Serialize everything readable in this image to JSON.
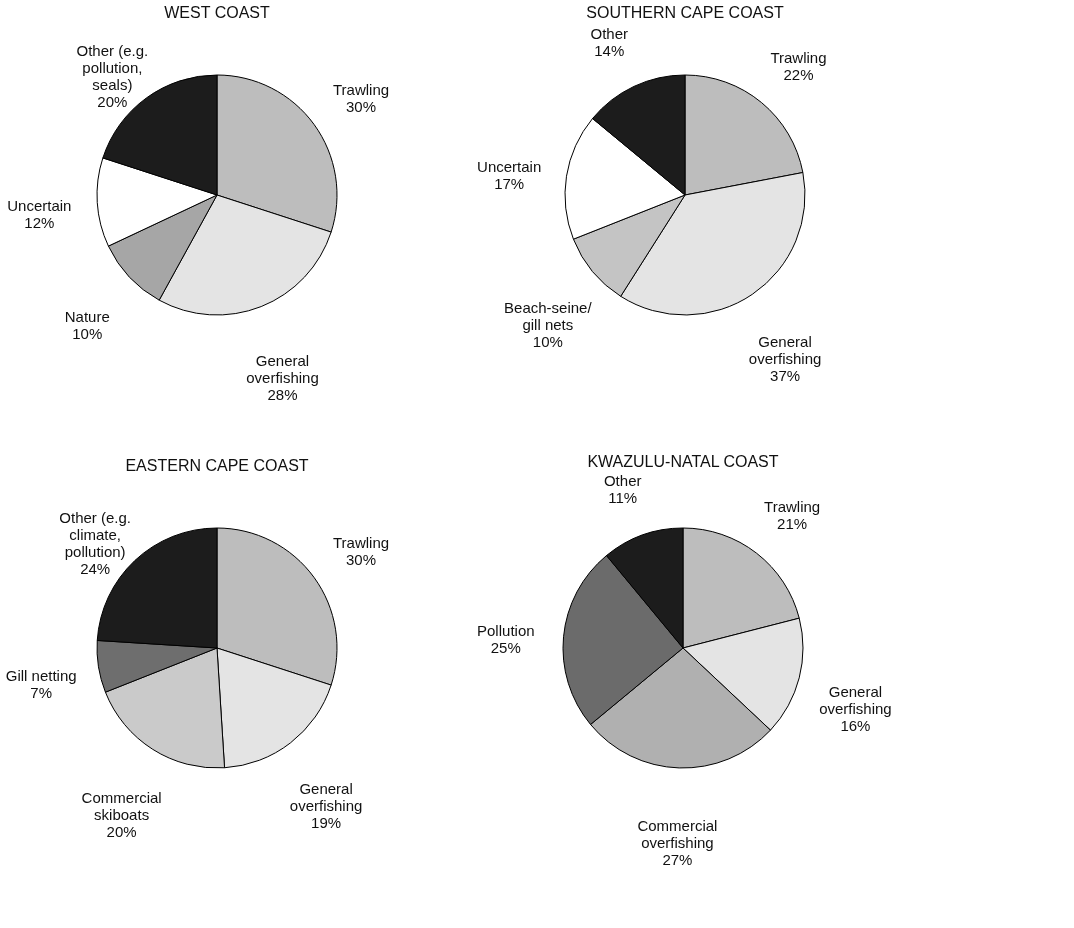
{
  "chart_data": [
    {
      "type": "pie",
      "title": "WEST COAST",
      "categories": [
        "Trawling",
        "General overfishing",
        "Nature",
        "Uncertain",
        "Other (e.g. pollution, seals)"
      ],
      "values": [
        30,
        28,
        10,
        12,
        20
      ],
      "value_labels": [
        "30%",
        "28%",
        "10%",
        "12%",
        "20%"
      ],
      "colors": [
        "#bdbdbd",
        "#e4e4e4",
        "#a6a6a6",
        "#ffffff",
        "#1c1c1c"
      ]
    },
    {
      "type": "pie",
      "title": "SOUTHERN CAPE COAST",
      "categories": [
        "Trawling",
        "General overfishing",
        "Beach-seine/ gill nets",
        "Uncertain",
        "Other"
      ],
      "values": [
        22,
        37,
        10,
        17,
        14
      ],
      "value_labels": [
        "22%",
        "37%",
        "10%",
        "17%",
        "14%"
      ],
      "colors": [
        "#bdbdbd",
        "#e4e4e4",
        "#c4c4c4",
        "#ffffff",
        "#1c1c1c"
      ]
    },
    {
      "type": "pie",
      "title": "EASTERN CAPE COAST",
      "categories": [
        "Trawling",
        "General overfishing",
        "Commercial skiboats",
        "Gill netting",
        "Other (e.g. climate, pollution)"
      ],
      "values": [
        30,
        19,
        20,
        7,
        24
      ],
      "value_labels": [
        "30%",
        "19%",
        "20%",
        "7%",
        "24%"
      ],
      "colors": [
        "#bdbdbd",
        "#e4e4e4",
        "#cacaca",
        "#6e6e6e",
        "#1c1c1c"
      ]
    },
    {
      "type": "pie",
      "title": "KWAZULU-NATAL COAST",
      "categories": [
        "Trawling",
        "General overfishing",
        "Commercial overfishing",
        "Pollution",
        "Other"
      ],
      "values": [
        21,
        16,
        27,
        25,
        11
      ],
      "value_labels": [
        "21%",
        "16%",
        "27%",
        "25%",
        "11%"
      ],
      "colors": [
        "#bdbdbd",
        "#e4e4e4",
        "#b0b0b0",
        "#6b6b6b",
        "#1c1c1c"
      ]
    }
  ]
}
